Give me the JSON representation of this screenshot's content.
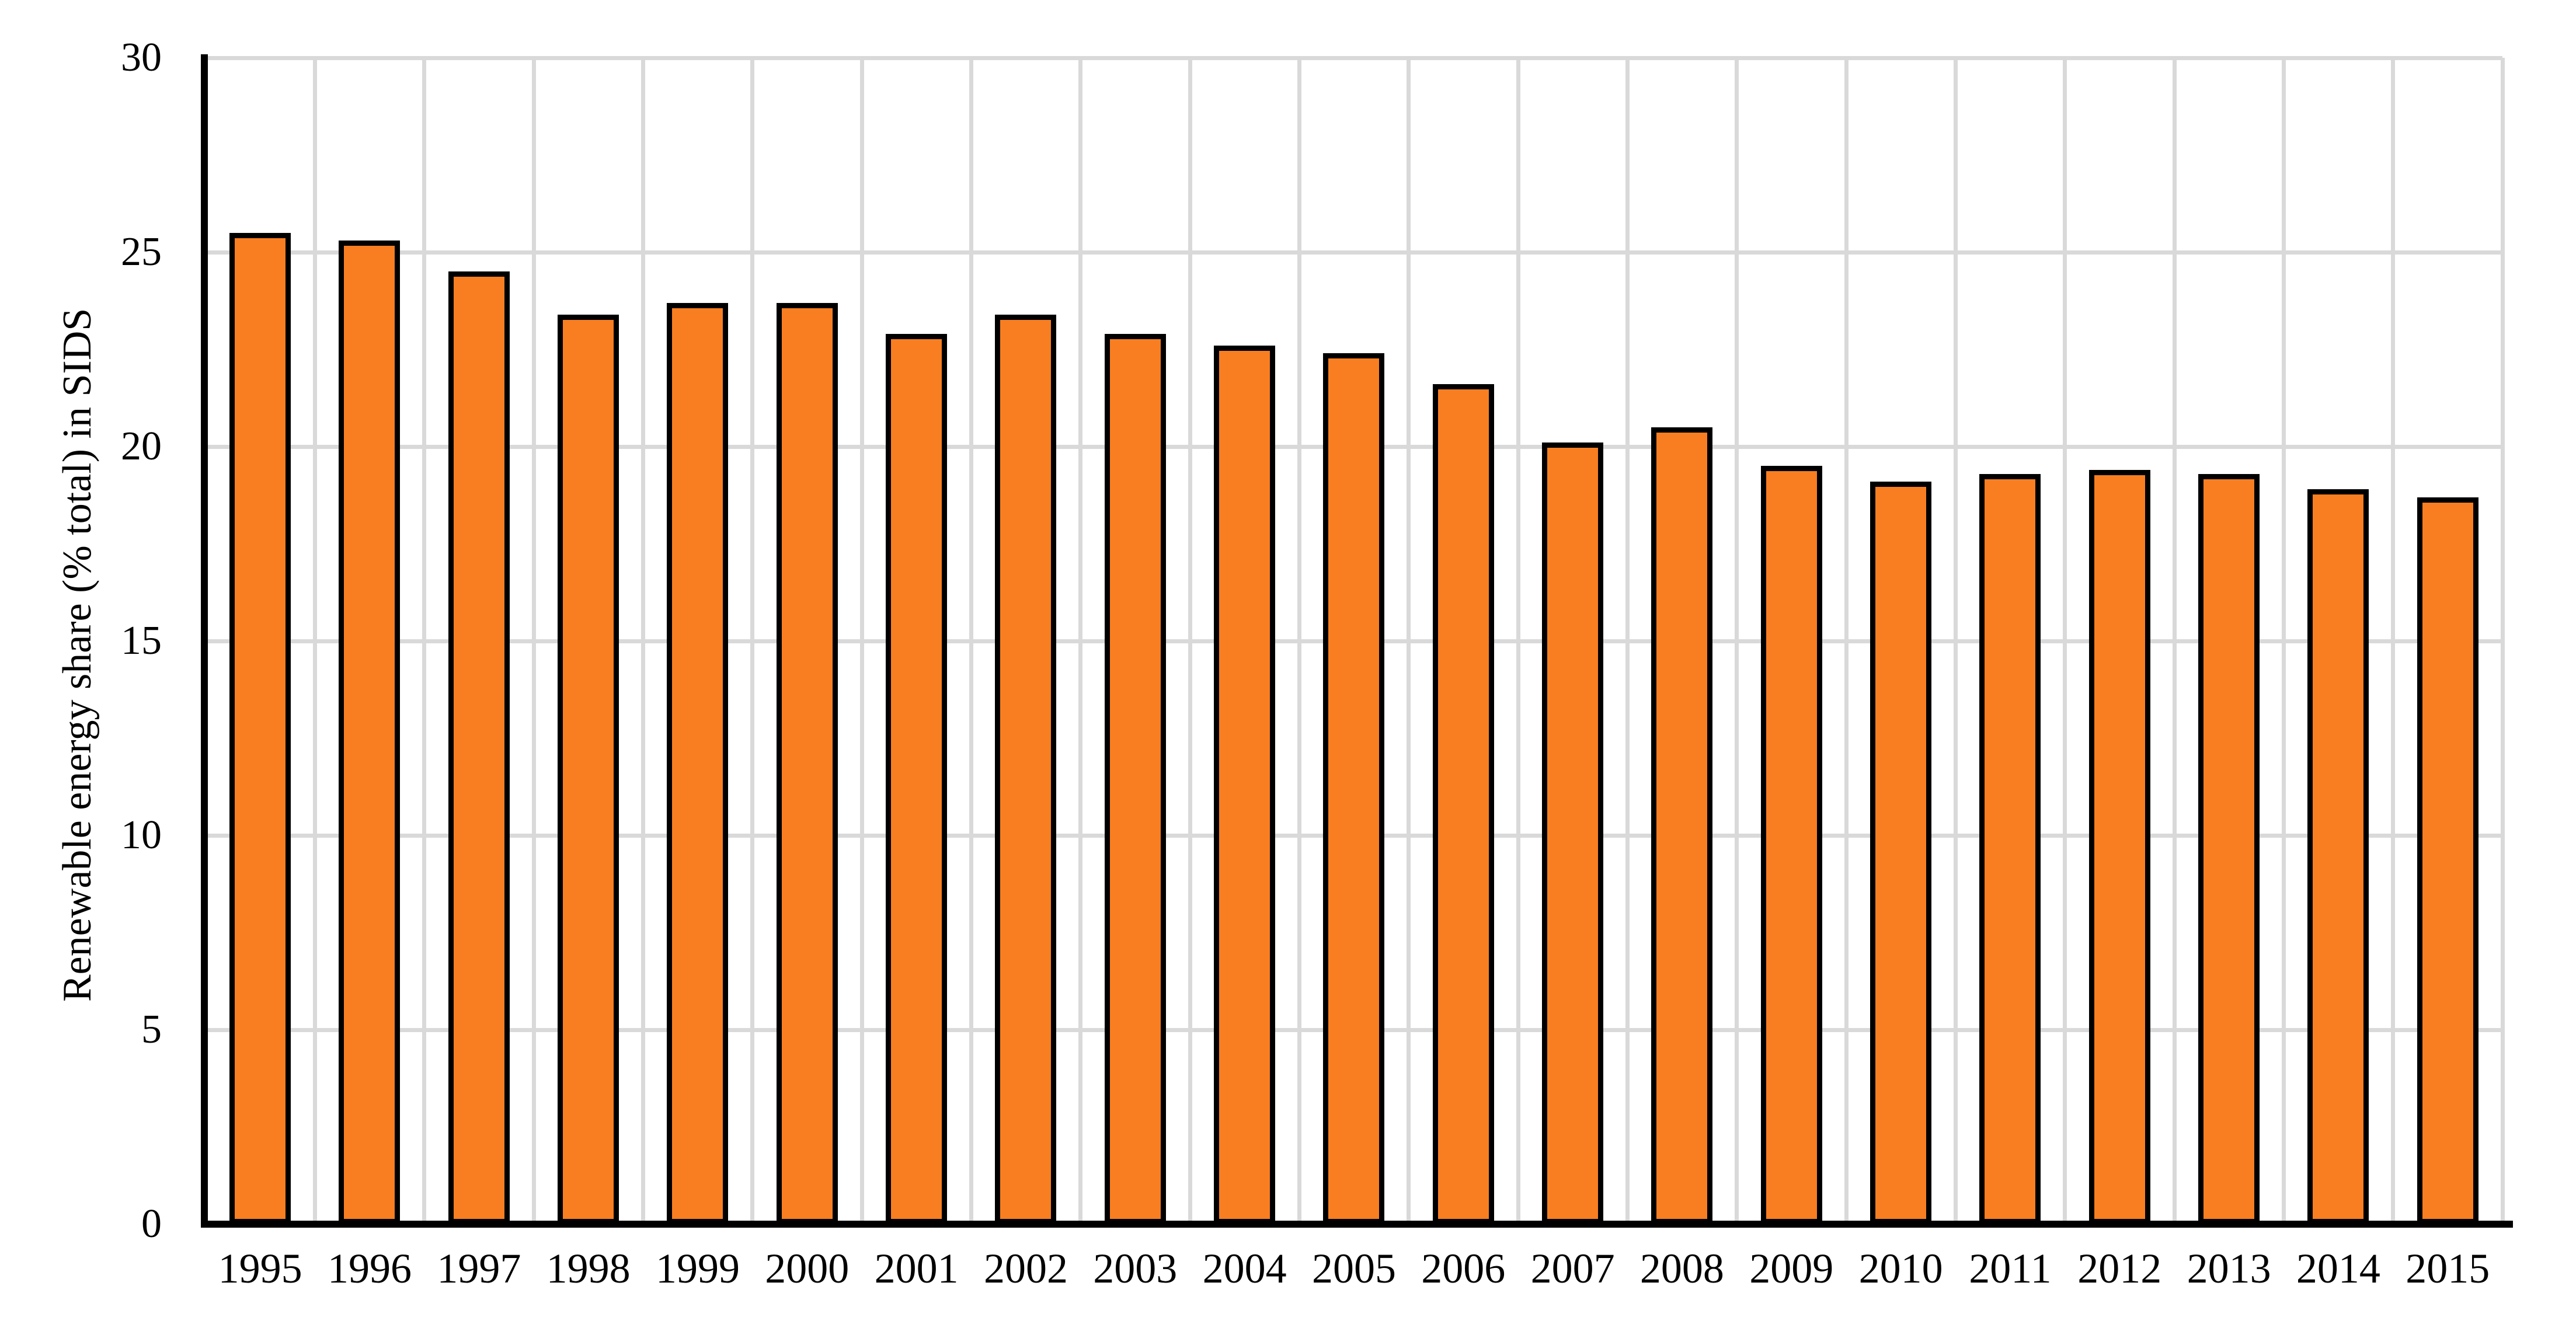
{
  "chart_data": {
    "type": "bar",
    "title": "",
    "xlabel": "",
    "ylabel": "Renewable energy share (% total) in SIDS",
    "categories": [
      "1995",
      "1996",
      "1997",
      "1998",
      "1999",
      "2000",
      "2001",
      "2002",
      "2003",
      "2004",
      "2005",
      "2006",
      "2007",
      "2008",
      "2009",
      "2010",
      "2011",
      "2012",
      "2013",
      "2014",
      "2015"
    ],
    "values": [
      25.5,
      25.3,
      24.5,
      23.4,
      23.7,
      23.7,
      22.9,
      23.4,
      22.9,
      22.6,
      22.4,
      21.6,
      20.1,
      20.5,
      19.5,
      19.1,
      19.3,
      19.4,
      19.3,
      18.9,
      18.7
    ],
    "ylim": [
      0,
      30
    ],
    "yticks": [
      0,
      5,
      10,
      15,
      20,
      25,
      30
    ],
    "grid": true,
    "legend": false,
    "colors": {
      "bar_fill": "#F87E21",
      "bar_border": "#000000",
      "gridline": "#D9D9D9",
      "axis_line": "#000000",
      "text": "#000000",
      "background": "#FFFFFF"
    }
  }
}
